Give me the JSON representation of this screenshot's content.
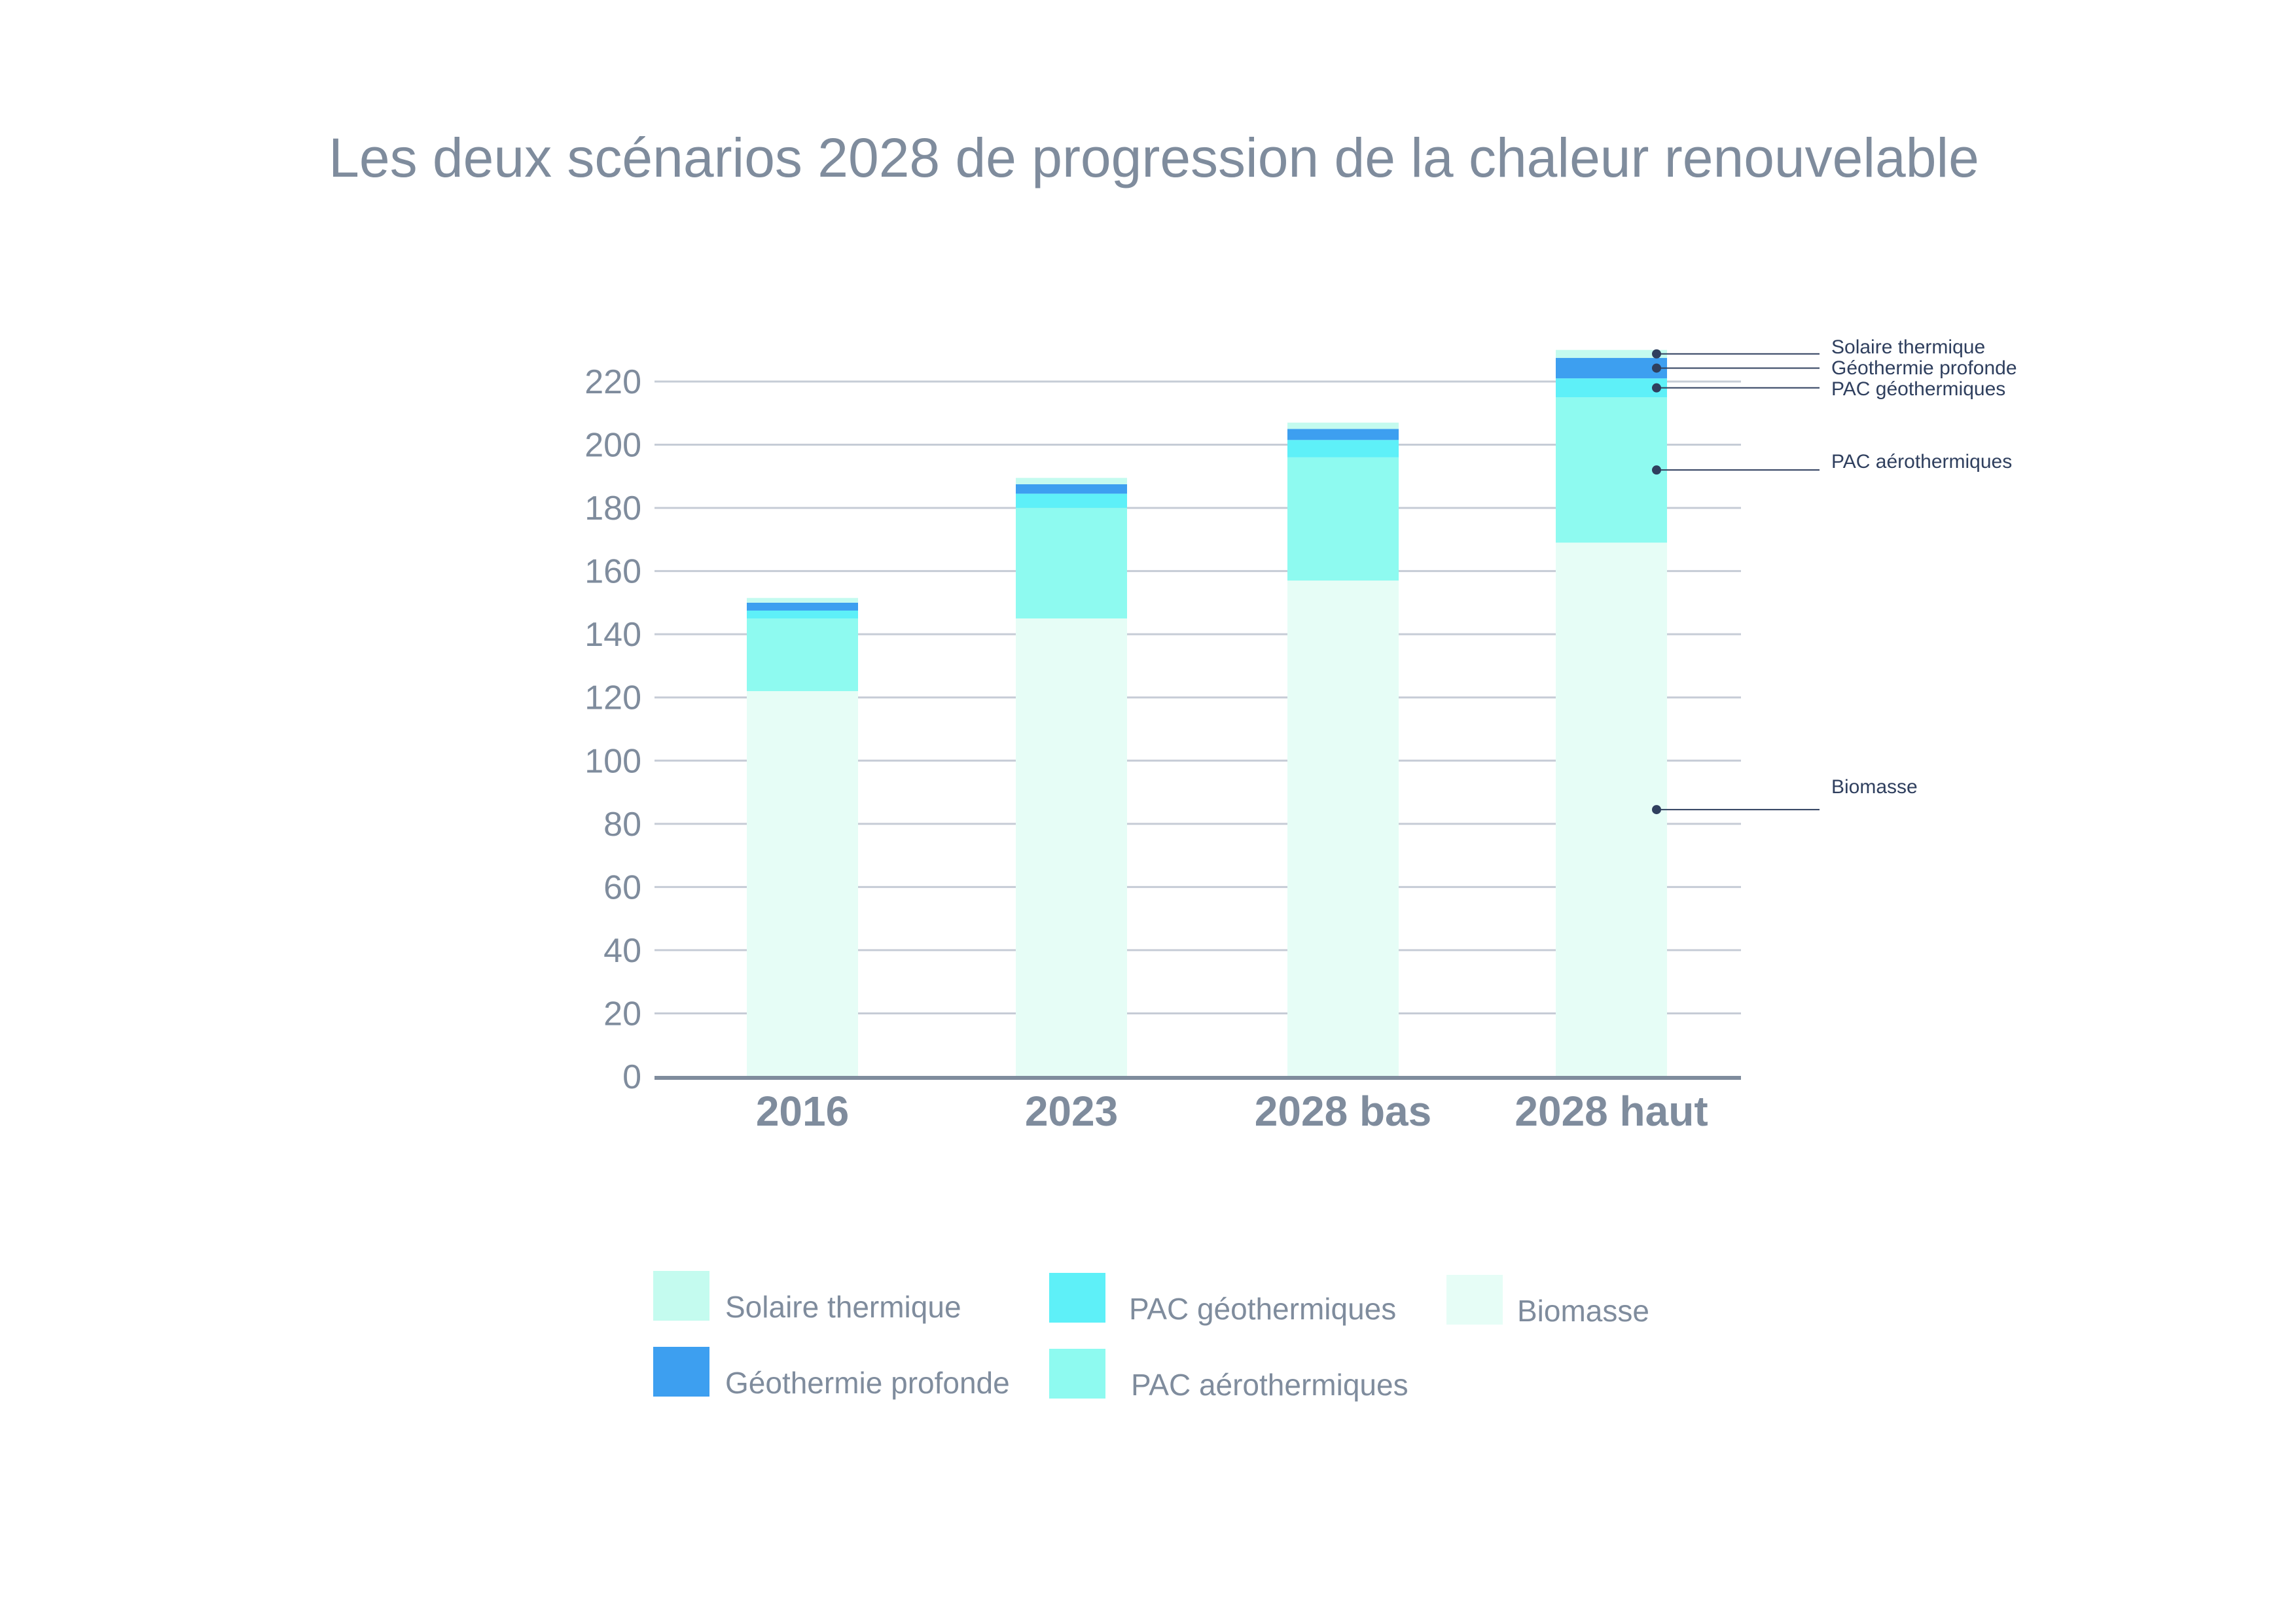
{
  "title": "Les deux scénarios 2028 de progression de la chaleur renouvelable",
  "chart_data": {
    "type": "bar",
    "stacked": true,
    "categories": [
      "2016",
      "2023",
      "2028 bas",
      "2028 haut"
    ],
    "series": [
      {
        "name": "Biomasse",
        "color": "#e6fdf6",
        "values": [
          122,
          145,
          157,
          169
        ]
      },
      {
        "name": "PAC aérothermiques",
        "color": "#8efaf0",
        "values": [
          23,
          35,
          39,
          46
        ]
      },
      {
        "name": "PAC géothermiques",
        "color": "#5ef0f8",
        "values": [
          2.5,
          4.5,
          5.5,
          6
        ]
      },
      {
        "name": "Géothermie profonde",
        "color": "#3d9ff0",
        "values": [
          2.5,
          3,
          3.5,
          6.5
        ]
      },
      {
        "name": "Solaire thermique",
        "color": "#c4fbef",
        "values": [
          1.5,
          2,
          2,
          2.5
        ]
      }
    ],
    "ylim": [
      0,
      220
    ],
    "yticks": [
      "0",
      "20",
      "40",
      "60",
      "80",
      "100",
      "120",
      "140",
      "160",
      "180",
      "200",
      "220"
    ],
    "grid": true,
    "legend_position": "bottom",
    "legend": [
      {
        "label": "Solaire thermique",
        "color": "#c4fbef"
      },
      {
        "label": "PAC géothermiques",
        "color": "#5ef0f8"
      },
      {
        "label": "Biomasse",
        "color": "#e6fdf6"
      },
      {
        "label": "Géothermie profonde",
        "color": "#3d9ff0"
      },
      {
        "label": "PAC aérothermiques",
        "color": "#8efaf0"
      }
    ],
    "annotations": [
      "Solaire thermique",
      "Géothermie profonde",
      "PAC géothermiques",
      "PAC aérothermiques",
      "Biomasse"
    ]
  }
}
